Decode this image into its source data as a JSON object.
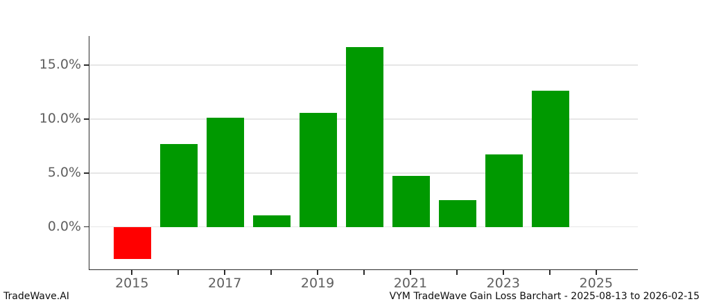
{
  "footer": {
    "brand": "TradeWave.AI",
    "title": "VYM TradeWave Gain Loss Barchart - 2025-08-13 to 2026-02-15"
  },
  "chart_data": {
    "type": "bar",
    "title": "VYM TradeWave Gain Loss Barchart - 2025-08-13 to 2026-02-15",
    "x": [
      2015,
      2016,
      2017,
      2018,
      2019,
      2020,
      2021,
      2022,
      2023,
      2024
    ],
    "values": [
      -3.0,
      7.7,
      10.1,
      1.1,
      10.6,
      16.7,
      4.7,
      2.5,
      6.7,
      12.6
    ],
    "xlabel": "",
    "ylabel": "",
    "ytick_values": [
      0,
      5,
      10,
      15
    ],
    "ytick_labels": [
      "0.0%",
      "5.0%",
      "10.0%",
      "15.0%"
    ],
    "xtick_values": [
      2015,
      2016,
      2017,
      2018,
      2019,
      2020,
      2021,
      2022,
      2023,
      2024,
      2025
    ],
    "xtick_labeled": [
      2015,
      2017,
      2019,
      2021,
      2023,
      2025
    ],
    "ylim": [
      -4.0,
      17.7
    ],
    "xlim": [
      2014.07,
      2025.9
    ],
    "bar_width_x_units": 0.8,
    "grid": "horizontal",
    "legend": "none",
    "colors": {
      "positive": "#009900",
      "negative": "#ff0000",
      "gridline": "#e6e6e6",
      "spine": "#2b2b2b",
      "tick_label": "#5f5f5f",
      "footer_text": "#0d0d0d"
    }
  }
}
